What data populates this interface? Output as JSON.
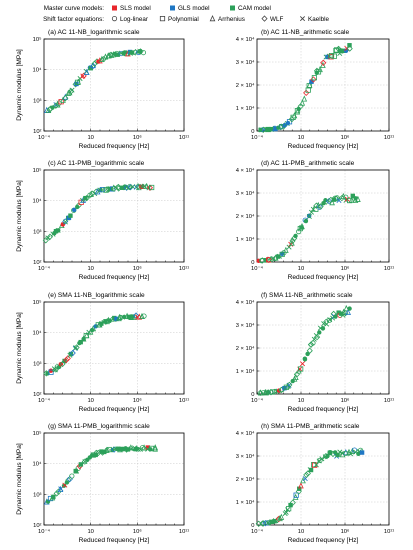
{
  "legend": {
    "models_title": "Master curve models:",
    "models": [
      {
        "name": "SLS model",
        "color": "#e8262b"
      },
      {
        "name": "GLS model",
        "color": "#1f77c4"
      },
      {
        "name": "CAM model",
        "color": "#2ca05a"
      }
    ],
    "shift_title": "Shift factor equations:",
    "shift": [
      {
        "name": "Log-linear",
        "marker": "circle"
      },
      {
        "name": "Polynomial",
        "marker": "square"
      },
      {
        "name": "Arrhenius",
        "marker": "triangle"
      },
      {
        "name": "WLF",
        "marker": "diamond"
      },
      {
        "name": "Kaelble",
        "marker": "cross"
      }
    ]
  },
  "colors": {
    "sls": "#e8262b",
    "gls": "#1f77c4",
    "cam": "#2ca05a",
    "grid": "#c8c8c8",
    "axis": "#000000"
  },
  "chart_data": [
    {
      "type": "scatter",
      "title": "(a) AC 11-NB_logarithmic scale",
      "xlabel": "Reduced frequency [Hz]",
      "ylabel": "Dynamic modulus [MPa]",
      "xscale": "log",
      "yscale": "log",
      "xlim": [
        0.0001,
        100000000000
      ],
      "ylim": [
        100,
        100000
      ],
      "xticks": [
        "10⁻⁴",
        "10",
        "10⁶",
        "10¹¹"
      ],
      "yticks": [
        "10²",
        "10³",
        "10⁴",
        "10⁵"
      ],
      "x_log_range": [
        -3.7,
        6.6
      ],
      "y_log_range": [
        2.5,
        4.58
      ],
      "sigmoid": {
        "x0": -0.5,
        "k": 0.75
      },
      "grid": true
    },
    {
      "type": "scatter",
      "title": "(b) AC 11-NB_arithmetic scale",
      "xlabel": "Reduced frequency [Hz]",
      "ylabel": "",
      "xscale": "log",
      "yscale": "linear",
      "xlim": [
        0.0001,
        100000000000
      ],
      "ylim": [
        0,
        40000
      ],
      "xticks": [
        "10⁻⁴",
        "10",
        "10⁶",
        "10¹¹"
      ],
      "yticks": [
        "0",
        "1 × 10⁴",
        "2 × 10⁴",
        "3 × 10⁴",
        "4 × 10⁴"
      ],
      "x_log_range": [
        -3.7,
        6.6
      ],
      "y_max": 37000,
      "sigmoid": {
        "x0": -0.5,
        "k": 0.75
      },
      "grid": true
    },
    {
      "type": "scatter",
      "title": "(c) AC 11-PMB_logarithmic scale",
      "xlabel": "Reduced frequency [Hz]",
      "ylabel": "Dynamic modulus [MPa]",
      "xscale": "log",
      "yscale": "log",
      "xlim": [
        0.0001,
        100000000000
      ],
      "ylim": [
        100,
        100000
      ],
      "xticks": [
        "10⁻⁴",
        "10",
        "10⁶",
        "10¹¹"
      ],
      "yticks": [
        "10²",
        "10³",
        "10⁴",
        "10⁵"
      ],
      "x_log_range": [
        -3.7,
        7.5
      ],
      "y_log_range": [
        2.5,
        4.45
      ],
      "sigmoid": {
        "x0": -1.3,
        "k": 0.8
      },
      "grid": true
    },
    {
      "type": "scatter",
      "title": "(d) AC 11-PMB_arithmetic scale",
      "xlabel": "Reduced frequency [Hz]",
      "ylabel": "",
      "xscale": "log",
      "yscale": "linear",
      "xlim": [
        0.0001,
        100000000000
      ],
      "ylim": [
        0,
        40000
      ],
      "xticks": [
        "10⁻⁴",
        "10",
        "10⁶",
        "10¹¹"
      ],
      "yticks": [
        "0",
        "1 × 10⁴",
        "2 × 10⁴",
        "3 × 10⁴",
        "4 × 10⁴"
      ],
      "x_log_range": [
        -3.7,
        7.5
      ],
      "y_max": 28000,
      "sigmoid": {
        "x0": -1.3,
        "k": 0.8
      },
      "grid": true
    },
    {
      "type": "scatter",
      "title": "(e) SMA 11-NB_logarithmic scale",
      "xlabel": "Reduced frequency [Hz]",
      "ylabel": "Dynamic modulus [MPa]",
      "xscale": "log",
      "yscale": "log",
      "xlim": [
        0.0001,
        100000000000
      ],
      "ylim": [
        100,
        100000
      ],
      "xticks": [
        "10⁻⁴",
        "10",
        "10⁶",
        "10¹¹"
      ],
      "yticks": [
        "10²",
        "10³",
        "10⁴",
        "10⁵"
      ],
      "x_log_range": [
        -3.7,
        6.6
      ],
      "y_log_range": [
        2.5,
        4.55
      ],
      "sigmoid": {
        "x0": -0.5,
        "k": 0.75
      },
      "grid": true
    },
    {
      "type": "scatter",
      "title": "(f) SMA 11-NB_arithmetic scale",
      "xlabel": "Reduced frequency [Hz]",
      "ylabel": "",
      "xscale": "log",
      "yscale": "linear",
      "xlim": [
        0.0001,
        100000000000
      ],
      "ylim": [
        0,
        40000
      ],
      "xticks": [
        "10⁻⁴",
        "10",
        "10⁶",
        "10¹¹"
      ],
      "yticks": [
        "0",
        "1 × 10⁴",
        "2 × 10⁴",
        "3 × 10⁴",
        "4 × 10⁴"
      ],
      "x_log_range": [
        -3.7,
        6.6
      ],
      "y_max": 37000,
      "sigmoid": {
        "x0": -0.5,
        "k": 0.75
      },
      "grid": true
    },
    {
      "type": "scatter",
      "title": "(g) SMA 11-PMB_logarithmic scale",
      "xlabel": "Reduced frequency [Hz]",
      "ylabel": "Dynamic modulus [MPa]",
      "xscale": "log",
      "yscale": "log",
      "xlim": [
        0.0001,
        100000000000
      ],
      "ylim": [
        100,
        100000
      ],
      "xticks": [
        "10⁻⁴",
        "10",
        "10⁶",
        "10¹¹"
      ],
      "yticks": [
        "10²",
        "10³",
        "10⁴",
        "10⁵"
      ],
      "x_log_range": [
        -3.7,
        8.0
      ],
      "y_log_range": [
        2.5,
        4.5
      ],
      "sigmoid": {
        "x0": -1.3,
        "k": 0.8
      },
      "grid": true
    },
    {
      "type": "scatter",
      "title": "(h) SMA 11-PMB_arithmetic scale",
      "xlabel": "Reduced frequency [Hz]",
      "ylabel": "",
      "xscale": "log",
      "yscale": "linear",
      "xlim": [
        0.0001,
        100000000000
      ],
      "ylim": [
        0,
        40000
      ],
      "xticks": [
        "10⁻⁴",
        "10",
        "10⁶",
        "10¹¹"
      ],
      "yticks": [
        "0",
        "1 × 10⁴",
        "2 × 10⁴",
        "3 × 10⁴",
        "4 × 10⁴"
      ],
      "x_log_range": [
        -3.7,
        8.0
      ],
      "y_max": 32000,
      "sigmoid": {
        "x0": -1.3,
        "k": 0.8
      },
      "grid": true
    }
  ]
}
